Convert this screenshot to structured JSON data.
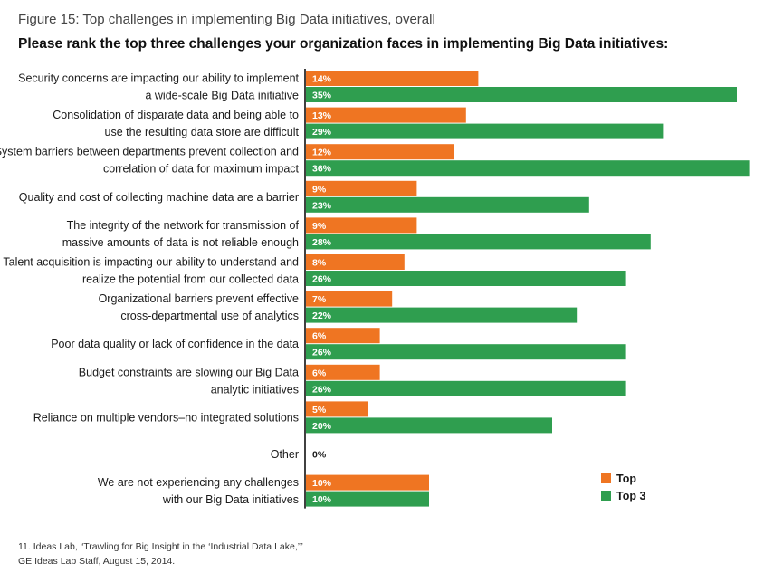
{
  "figure_title": "Figure 15: Top challenges in implementing Big Data initiatives, overall",
  "question": "Please rank the top three challenges your organization faces in implementing Big Data initiatives:",
  "colors": {
    "top": "#ef7522",
    "top3": "#2f9e4f"
  },
  "chart_data": {
    "type": "bar",
    "orientation": "horizontal",
    "title": "Top challenges in implementing Big Data initiatives, overall",
    "xlabel": "",
    "ylabel": "",
    "xlim": [
      0,
      37
    ],
    "unit": "%",
    "categories": [
      [
        "Security concerns are impacting our ability to implement",
        "a wide-scale Big Data initiative"
      ],
      [
        "Consolidation of disparate data and being able to",
        "use the resulting data store are difficult"
      ],
      [
        "System barriers between departments prevent collection and",
        "correlation of data for maximum impact"
      ],
      [
        "Quality and cost of collecting machine data are a barrier"
      ],
      [
        "The integrity of the network for transmission of",
        "massive amounts of data is not reliable enough"
      ],
      [
        "Talent acquisition is impacting our ability to understand and",
        "realize the potential from our collected data"
      ],
      [
        "Organizational barriers prevent effective",
        "cross-departmental use of analytics"
      ],
      [
        "Poor data quality or lack of confidence in the data"
      ],
      [
        "Budget constraints are slowing our Big Data",
        "analytic initiatives"
      ],
      [
        "Reliance on multiple vendors–no integrated solutions"
      ],
      [
        "Other"
      ],
      [
        "We are not experiencing any challenges",
        "with our Big Data initiatives"
      ]
    ],
    "series": [
      {
        "name": "Top",
        "values": [
          14,
          13,
          12,
          9,
          9,
          8,
          7,
          6,
          6,
          5,
          0,
          10
        ]
      },
      {
        "name": "Top 3",
        "values": [
          35,
          29,
          36,
          23,
          28,
          26,
          22,
          26,
          26,
          20,
          0,
          10
        ]
      }
    ],
    "legend": [
      "Top",
      "Top 3"
    ],
    "legend_position": "bottom-right",
    "notes": {
      "other_label": "0%"
    }
  },
  "footnote": {
    "line1": "11. Ideas Lab, “Trawling for Big Insight in the ‘Industrial Data Lake,’”",
    "line2": "GE Ideas Lab Staff, August 15, 2014."
  }
}
